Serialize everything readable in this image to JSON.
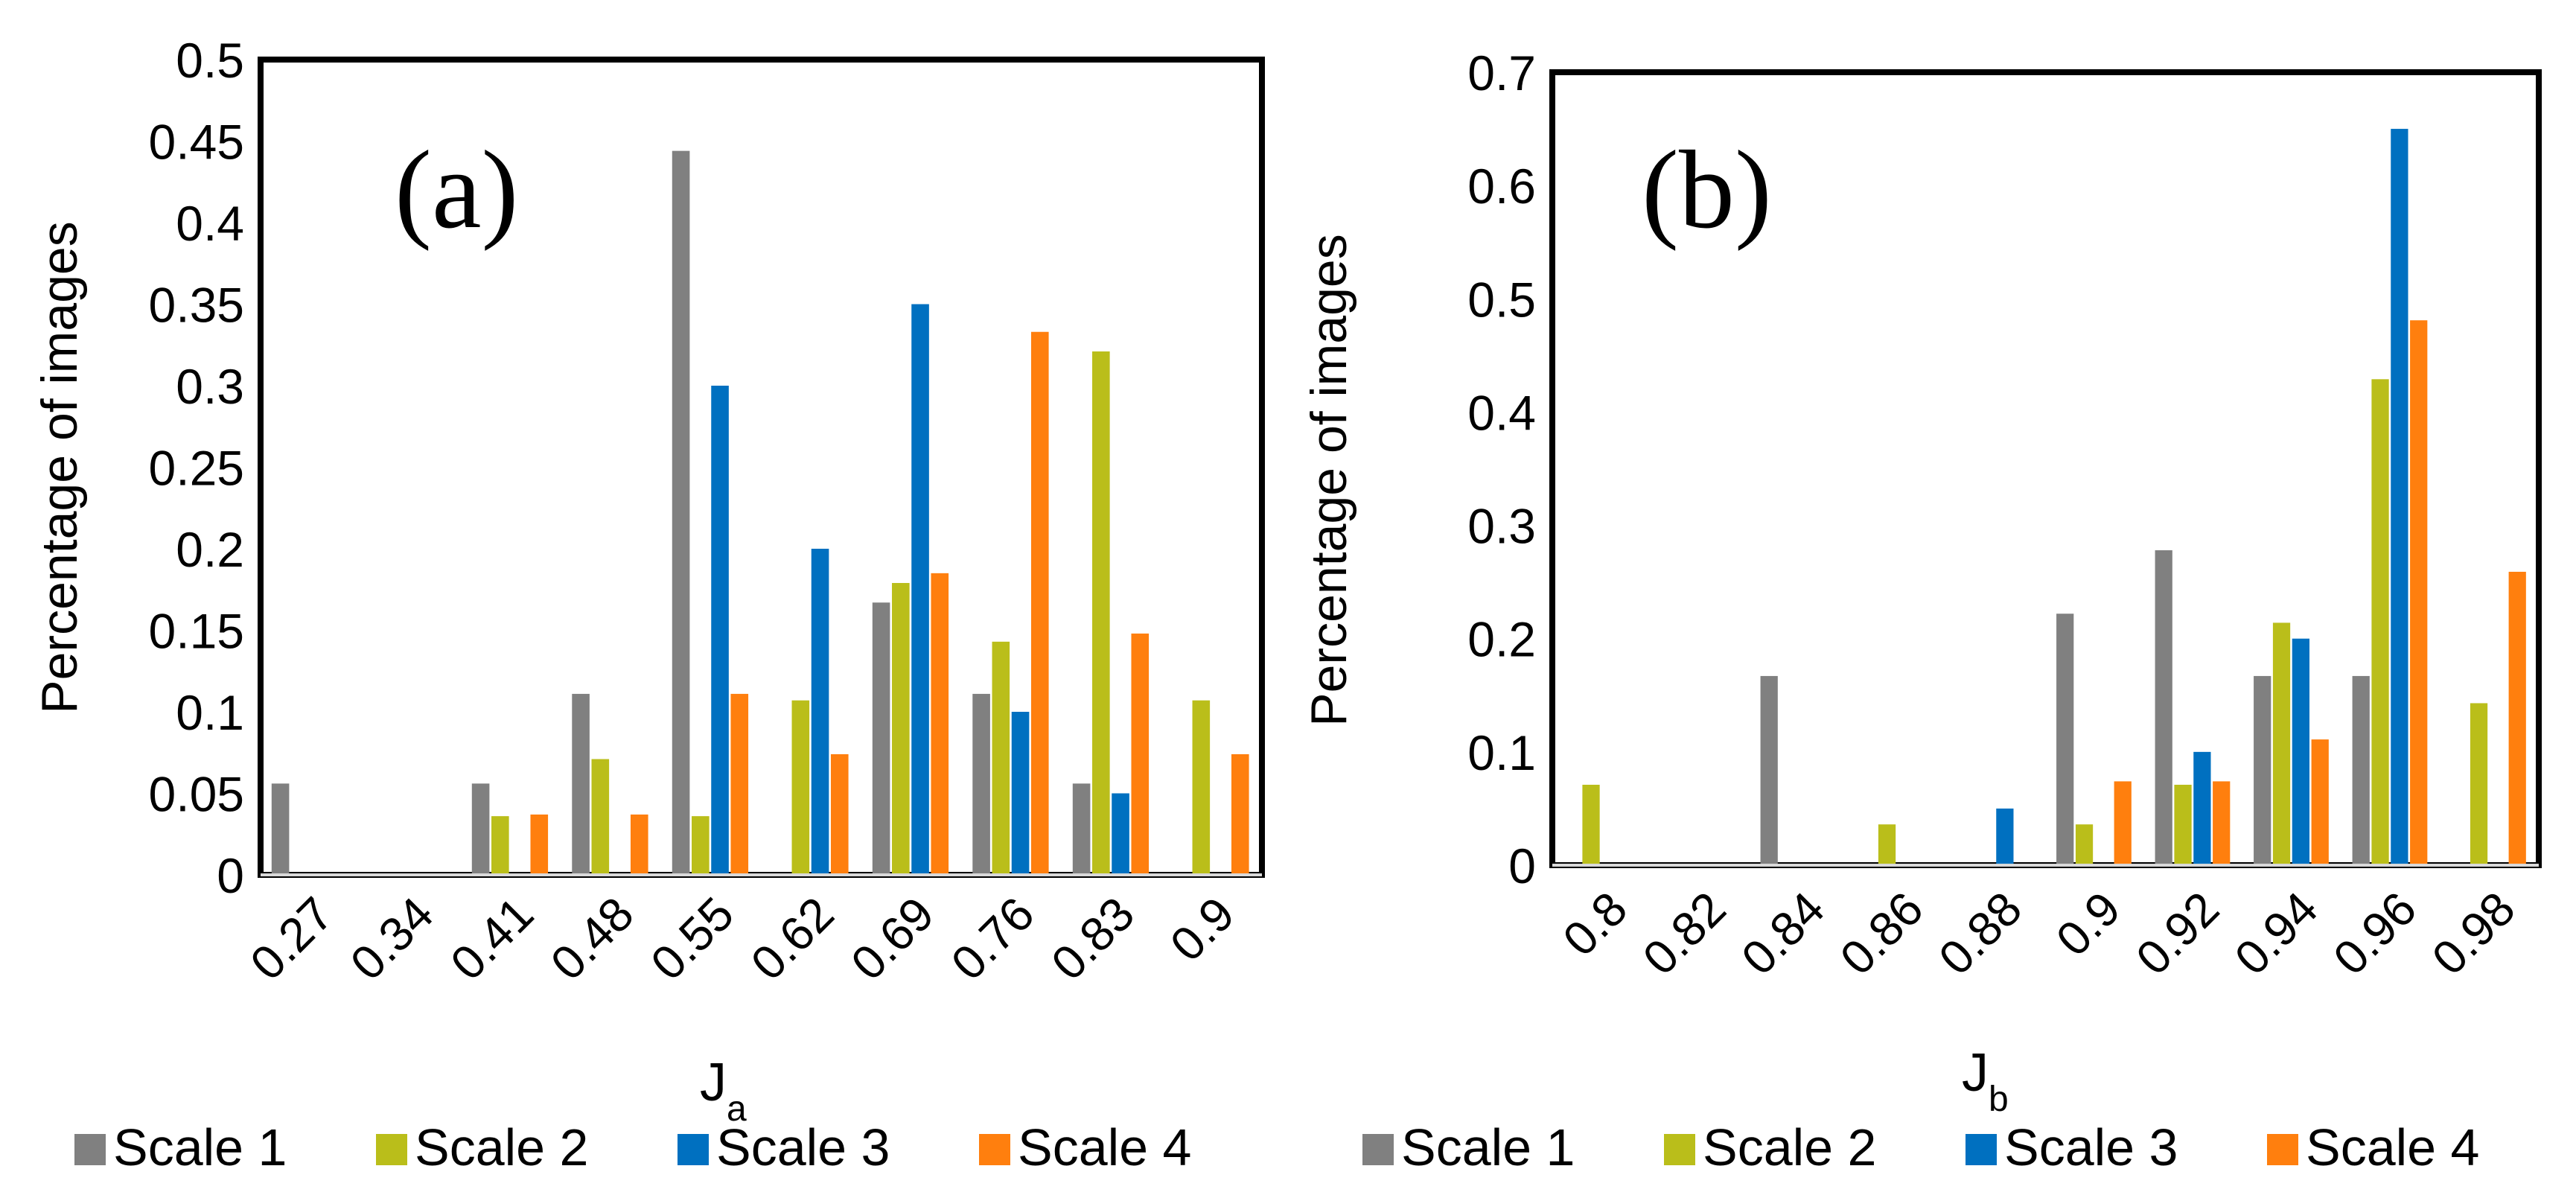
{
  "chart_data": [
    {
      "type": "bar",
      "panel_label": "(a)",
      "ylabel": "Percentage of images",
      "xlabel_main": "J",
      "xlabel_sub": "a",
      "ylim": [
        0,
        0.5
      ],
      "ytick_values": [
        0,
        0.05,
        0.1,
        0.15,
        0.2,
        0.25,
        0.3,
        0.35,
        0.4,
        0.45,
        0.5
      ],
      "ytick_labels": [
        "0",
        "0.05",
        "0.1",
        "0.15",
        "0.2",
        "0.25",
        "0.3",
        "0.35",
        "0.4",
        "0.45",
        "0.5"
      ],
      "categories": [
        "0.27",
        "0.34",
        "0.41",
        "0.48",
        "0.55",
        "0.62",
        "0.69",
        "0.76",
        "0.83",
        "0.9"
      ],
      "series": [
        {
          "name": "Scale 1",
          "color": "#808080",
          "values": [
            0.056,
            0,
            0.056,
            0.111,
            0.444,
            0,
            0.167,
            0.111,
            0.056,
            0
          ]
        },
        {
          "name": "Scale 2",
          "color": "#BABE1A",
          "values": [
            0,
            0,
            0.036,
            0.071,
            0.036,
            0.107,
            0.179,
            0.143,
            0.321,
            0.107
          ]
        },
        {
          "name": "Scale 3",
          "color": "#0070C0",
          "values": [
            0,
            0,
            0,
            0,
            0.3,
            0.2,
            0.35,
            0.1,
            0.05,
            0
          ]
        },
        {
          "name": "Scale 4",
          "color": "#FF7F0E",
          "values": [
            0,
            0,
            0.037,
            0.037,
            0.111,
            0.074,
            0.185,
            0.333,
            0.148,
            0.074
          ]
        }
      ],
      "grid": false,
      "legend_position": "bottom"
    },
    {
      "type": "bar",
      "panel_label": "(b)",
      "ylabel": "Percentage of images",
      "xlabel_main": "J",
      "xlabel_sub": "b",
      "ylim": [
        0,
        0.7
      ],
      "ytick_values": [
        0,
        0.1,
        0.2,
        0.3,
        0.4,
        0.5,
        0.6,
        0.7
      ],
      "ytick_labels": [
        "0",
        "0.1",
        "0.2",
        "0.3",
        "0.4",
        "0.5",
        "0.6",
        "0.7"
      ],
      "categories": [
        "0.8",
        "0.82",
        "0.84",
        "0.86",
        "0.88",
        "0.9",
        "0.92",
        "0.94",
        "0.96",
        "0.98"
      ],
      "series": [
        {
          "name": "Scale 1",
          "color": "#808080",
          "values": [
            0,
            0,
            0.167,
            0,
            0,
            0.222,
            0.278,
            0.167,
            0.167,
            0
          ]
        },
        {
          "name": "Scale 2",
          "color": "#BABE1A",
          "values": [
            0.071,
            0,
            0,
            0.036,
            0,
            0.036,
            0.071,
            0.214,
            0.429,
            0.143
          ]
        },
        {
          "name": "Scale 3",
          "color": "#0070C0",
          "values": [
            0,
            0,
            0,
            0,
            0.05,
            0,
            0.1,
            0.2,
            0.65,
            0
          ]
        },
        {
          "name": "Scale 4",
          "color": "#FF7F0E",
          "values": [
            0,
            0,
            0,
            0,
            0,
            0.074,
            0.074,
            0.111,
            0.481,
            0.259
          ]
        }
      ],
      "grid": false,
      "legend_position": "bottom"
    }
  ]
}
